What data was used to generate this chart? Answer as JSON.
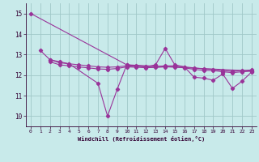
{
  "background_color": "#c8eaea",
  "grid_color": "#a0c8c8",
  "line_color": "#993399",
  "xlabel": "Windchill (Refroidissement éolien,°C)",
  "xlim": [
    -0.5,
    23.5
  ],
  "ylim": [
    9.5,
    15.5
  ],
  "yticks": [
    10,
    11,
    12,
    13,
    14,
    15
  ],
  "xticks": [
    0,
    1,
    2,
    3,
    4,
    5,
    6,
    7,
    8,
    9,
    10,
    11,
    12,
    13,
    14,
    15,
    16,
    17,
    18,
    19,
    20,
    21,
    22,
    23
  ],
  "series": [
    {
      "x": [
        0,
        10,
        23
      ],
      "y": [
        15.0,
        12.5,
        12.2
      ]
    },
    {
      "x": [
        1,
        2,
        3,
        4,
        7,
        8,
        9,
        10,
        11,
        12,
        13,
        14,
        15,
        16,
        17,
        18,
        19,
        20,
        21,
        22,
        23
      ],
      "y": [
        13.2,
        12.75,
        12.65,
        12.55,
        11.6,
        10.0,
        11.3,
        12.5,
        12.45,
        12.4,
        12.5,
        13.3,
        12.5,
        12.4,
        11.9,
        11.85,
        11.75,
        12.05,
        11.35,
        11.7,
        12.15
      ]
    },
    {
      "x": [
        2,
        3,
        4,
        5,
        6,
        7,
        8,
        9,
        10,
        11,
        12,
        13,
        14,
        15,
        16,
        17,
        18,
        19,
        20,
        21,
        22,
        23
      ],
      "y": [
        12.75,
        12.6,
        12.55,
        12.5,
        12.45,
        12.4,
        12.38,
        12.4,
        12.45,
        12.43,
        12.41,
        12.42,
        12.45,
        12.45,
        12.4,
        12.35,
        12.3,
        12.28,
        12.22,
        12.18,
        12.22,
        12.25
      ]
    },
    {
      "x": [
        2,
        3,
        4,
        5,
        6,
        7,
        8,
        9,
        10,
        11,
        12,
        13,
        14,
        15,
        16,
        17,
        18,
        19,
        20,
        21,
        22,
        23
      ],
      "y": [
        12.65,
        12.5,
        12.45,
        12.4,
        12.35,
        12.3,
        12.28,
        12.32,
        12.4,
        12.38,
        12.36,
        12.37,
        12.4,
        12.4,
        12.35,
        12.28,
        12.23,
        12.22,
        12.16,
        12.12,
        12.16,
        12.19
      ]
    }
  ]
}
